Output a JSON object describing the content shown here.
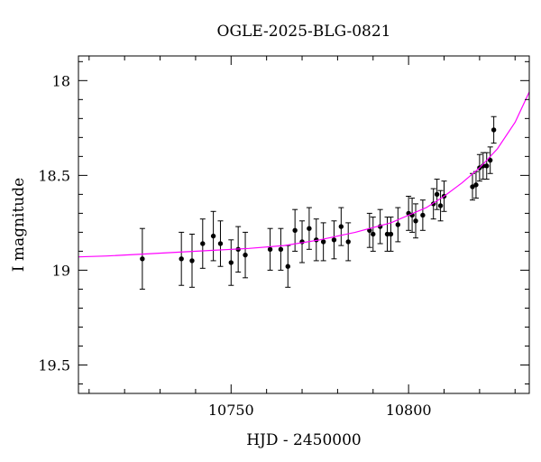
{
  "chart_data": {
    "type": "scatter",
    "title": "OGLE-2025-BLG-0821",
    "xlabel": "HJD - 2450000",
    "ylabel": "I magnitude",
    "xlim": [
      10707,
      10834
    ],
    "ylim": [
      19.65,
      17.87
    ],
    "y_inverted": true,
    "x_ticks": [
      10750,
      10800
    ],
    "y_ticks": [
      18,
      18.5,
      19,
      19.5
    ],
    "grid": false,
    "legend": "none",
    "colors": {
      "points": "#000000",
      "model": "#ff00ff",
      "axes": "#000000"
    },
    "series": [
      {
        "kind": "points_with_errorbars",
        "x": [
          10725.0,
          10736.0,
          10739.0,
          10742.0,
          10745.0,
          10747.0,
          10750.0,
          10752.0,
          10754.0,
          10761.0,
          10764.0,
          10766.0,
          10768.0,
          10770.0,
          10772.0,
          10774.0,
          10776.0,
          10779.0,
          10781.0,
          10783.0,
          10789.0,
          10790.0,
          10792.0,
          10794.0,
          10795.0,
          10797.0,
          10800.0,
          10801.0,
          10802.0,
          10804.0,
          10807.0,
          10808.0,
          10809.0,
          10810.0,
          10818.0,
          10819.0,
          10820.0,
          10821.0,
          10822.0,
          10823.0,
          10824.0
        ],
        "y": [
          18.94,
          18.94,
          18.95,
          18.86,
          18.82,
          18.86,
          18.96,
          18.89,
          18.92,
          18.89,
          18.89,
          18.98,
          18.79,
          18.85,
          18.78,
          18.84,
          18.85,
          18.84,
          18.77,
          18.85,
          18.79,
          18.81,
          18.77,
          18.81,
          18.81,
          18.76,
          18.7,
          18.71,
          18.74,
          18.71,
          18.65,
          18.6,
          18.66,
          18.61,
          18.56,
          18.55,
          18.46,
          18.45,
          18.45,
          18.42,
          18.26
        ],
        "yerr": [
          0.16,
          0.14,
          0.14,
          0.13,
          0.13,
          0.12,
          0.12,
          0.12,
          0.12,
          0.11,
          0.11,
          0.11,
          0.11,
          0.11,
          0.11,
          0.11,
          0.1,
          0.1,
          0.1,
          0.1,
          0.09,
          0.09,
          0.09,
          0.09,
          0.09,
          0.09,
          0.09,
          0.09,
          0.09,
          0.08,
          0.08,
          0.08,
          0.08,
          0.08,
          0.07,
          0.07,
          0.07,
          0.07,
          0.07,
          0.07,
          0.07
        ]
      },
      {
        "kind": "model_curve",
        "x": [
          10707,
          10715,
          10725,
          10735,
          10745,
          10755,
          10765,
          10775,
          10785,
          10795,
          10800,
          10805,
          10810,
          10815,
          10820,
          10825,
          10830,
          10834
        ],
        "y": [
          18.93,
          18.925,
          18.915,
          18.905,
          18.895,
          18.885,
          18.87,
          18.84,
          18.8,
          18.75,
          18.71,
          18.67,
          18.61,
          18.54,
          18.46,
          18.36,
          18.22,
          18.06
        ]
      }
    ]
  }
}
